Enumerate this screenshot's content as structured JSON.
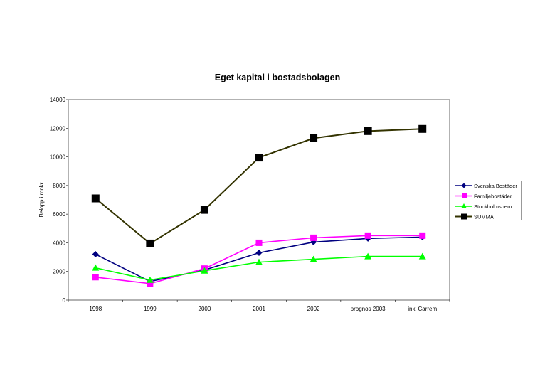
{
  "chart_data": {
    "type": "line",
    "title": "Eget kapital i bostadsbolagen",
    "xlabel": "",
    "ylabel": "Belopp i mnkr",
    "categories": [
      "1998",
      "1999",
      "2000",
      "2001",
      "2002",
      "prognos 2003",
      "inkl Carrem"
    ],
    "ylim": [
      0,
      14000
    ],
    "yticks": [
      0,
      2000,
      4000,
      6000,
      8000,
      10000,
      12000,
      14000
    ],
    "grid": false,
    "legend_position": "right",
    "series": [
      {
        "name": "Svenska Bostäder",
        "color": "#000080",
        "marker": "diamond",
        "values": [
          3200,
          1300,
          2100,
          3300,
          4050,
          4300,
          4400
        ]
      },
      {
        "name": "Familjebostäder",
        "color": "#ff00ff",
        "marker": "square",
        "values": [
          1600,
          1150,
          2200,
          4000,
          4350,
          4500,
          4500
        ]
      },
      {
        "name": "Stockholmshem",
        "color": "#00ff00",
        "marker": "triangle",
        "values": [
          2250,
          1400,
          2050,
          2650,
          2850,
          3050,
          3050
        ]
      },
      {
        "name": "SUMMA",
        "color": "#333300",
        "marker": "square-large",
        "values": [
          7100,
          3950,
          6300,
          9950,
          11300,
          11800,
          11950
        ]
      }
    ]
  }
}
